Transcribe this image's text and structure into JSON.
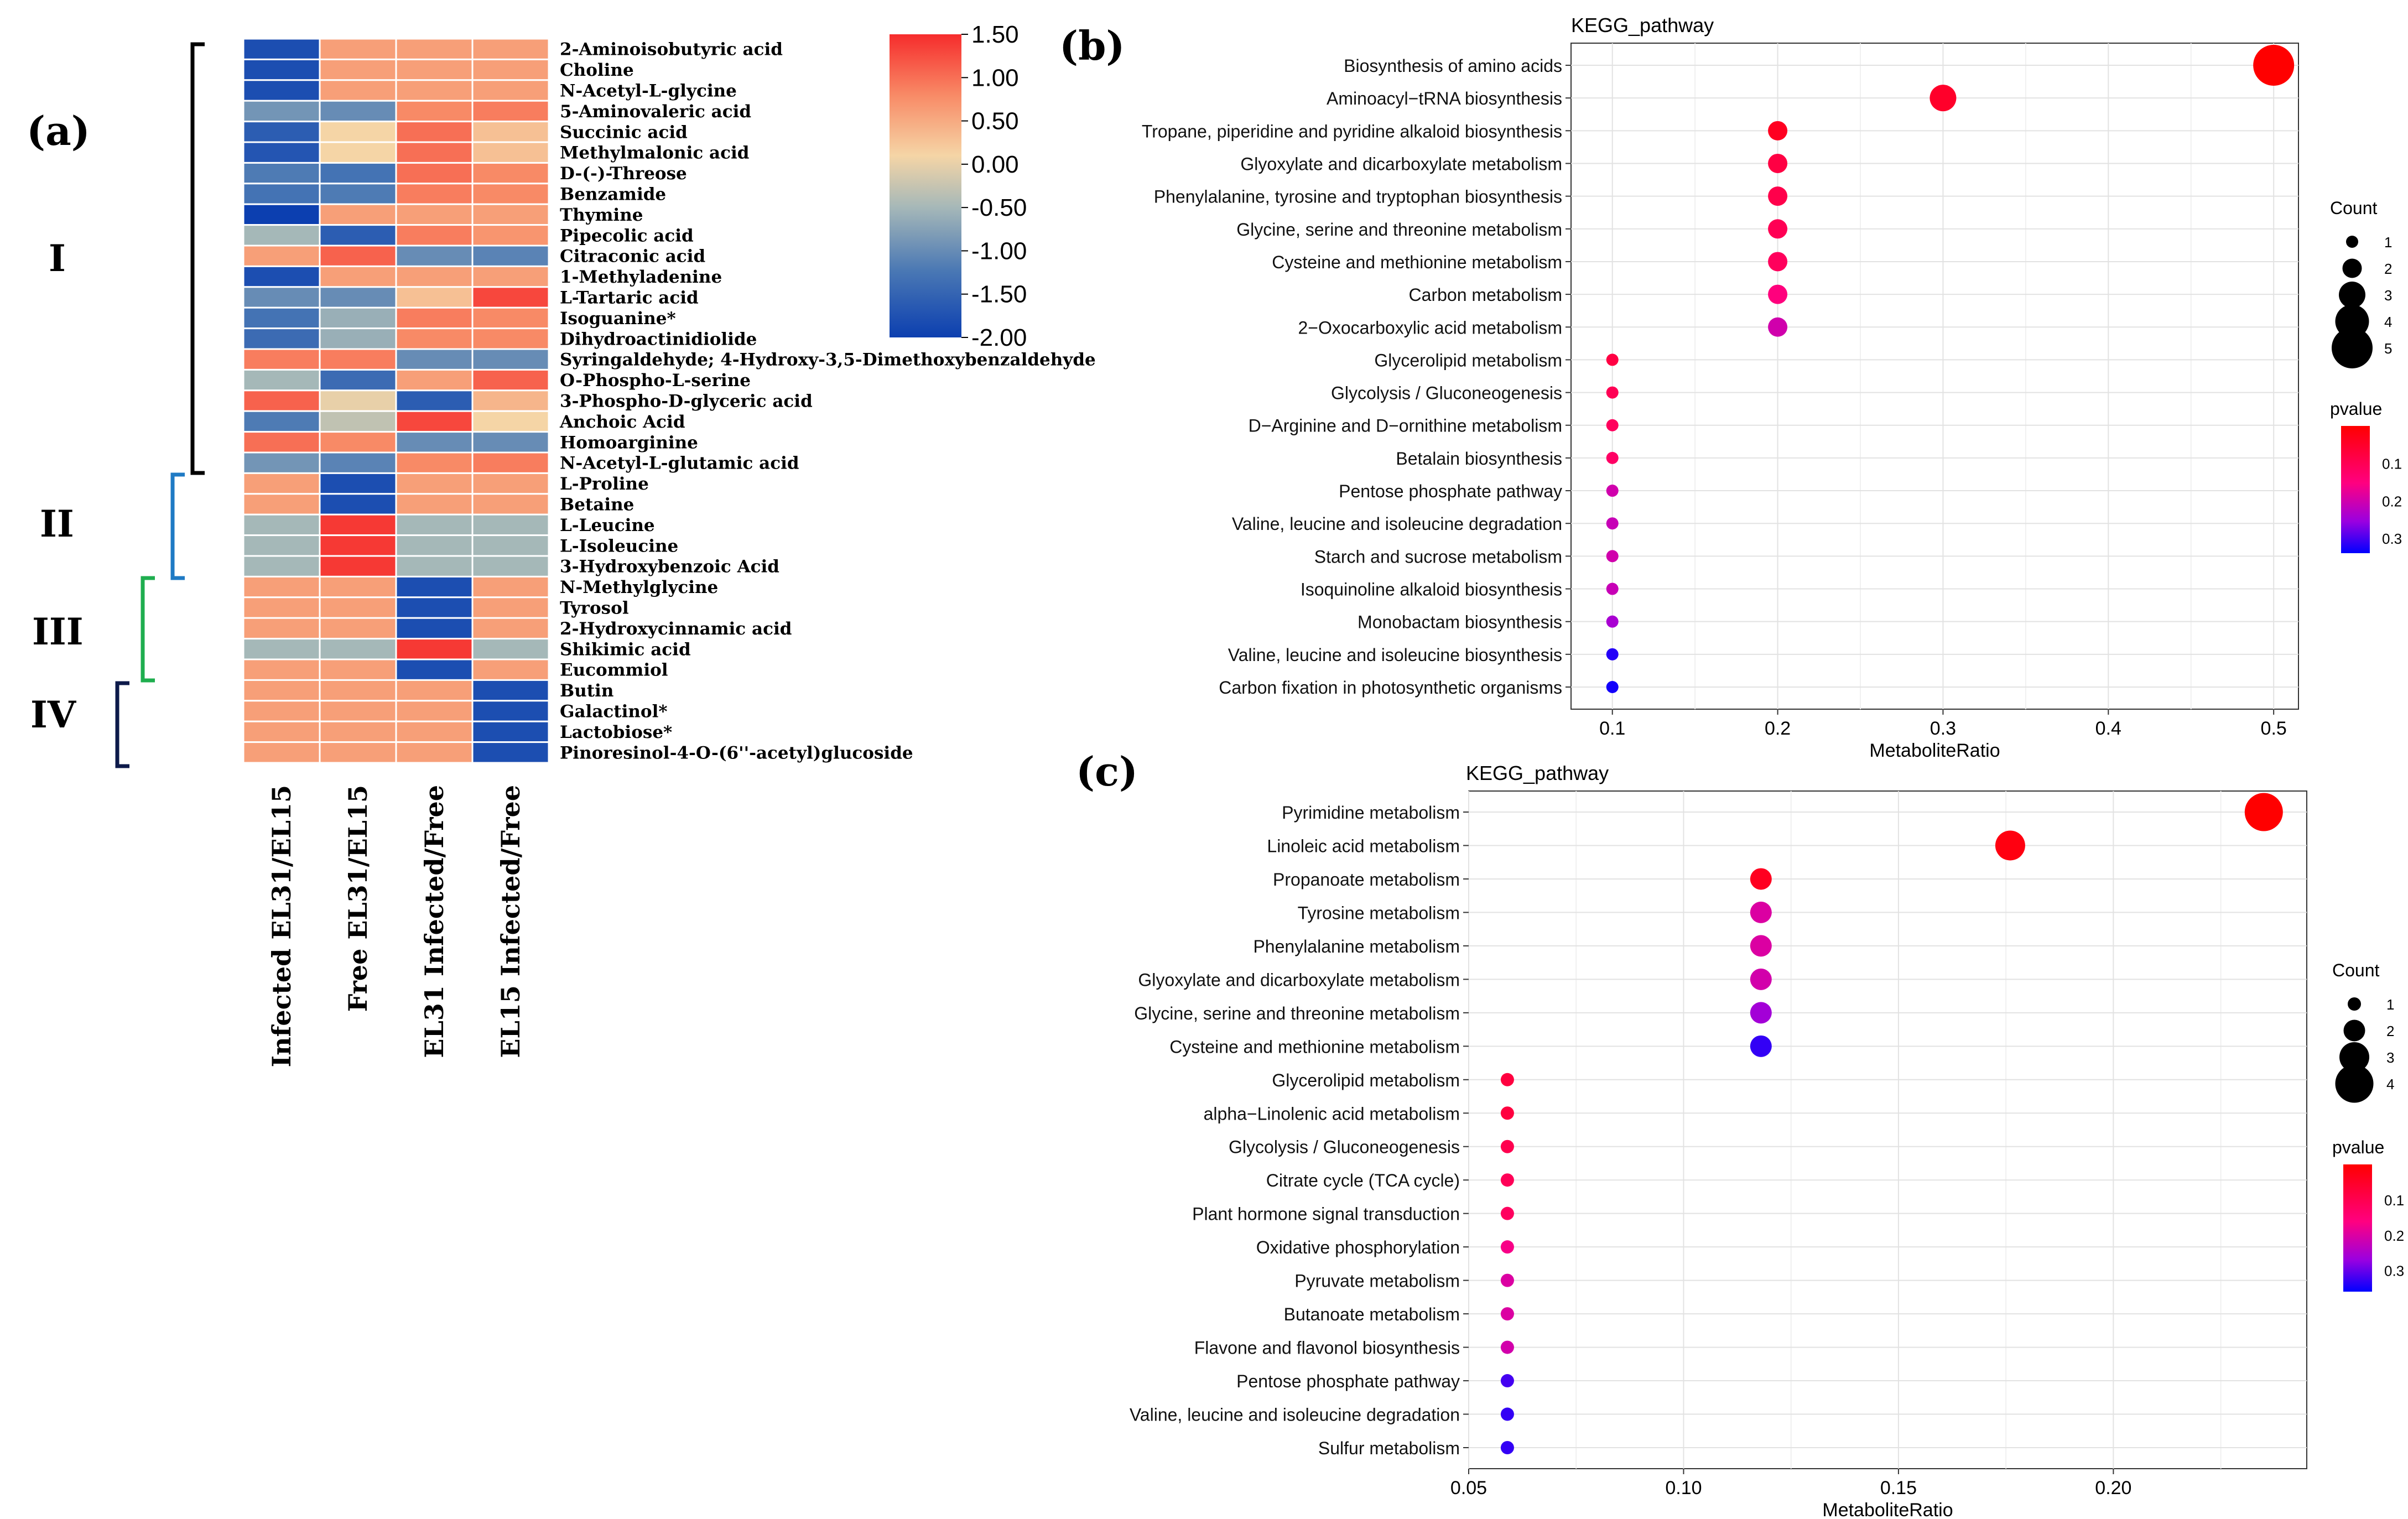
{
  "chart_data": [
    {
      "id": "a",
      "type": "heatmap",
      "panel_label": "(a)",
      "columns": [
        "Infected  EL31/EL15",
        "Free EL31/EL15",
        "EL31 Infected/Free",
        "EL15 Infected/Free"
      ],
      "rows": [
        "2-Aminoisobutyric acid",
        "Choline",
        "N-Acetyl-L-glycine",
        "5-Aminovaleric acid",
        "Succinic acid",
        "Methylmalonic acid",
        "D-(-)-Threose",
        "Benzamide",
        "Thymine",
        "Pipecolic acid",
        "Citraconic acid",
        "1-Methyladenine",
        "L-Tartaric acid",
        "Isoguanine*",
        "Dihydroactinidiolide",
        "Syringaldehyde; 4-Hydroxy-3,5-Dimethoxybenzaldehyde",
        "O-Phospho-L-serine",
        "3-Phospho-D-glyceric acid",
        "Anchoic Acid",
        "Homoarginine",
        "N-Acetyl-L-glutamic acid",
        "L-Proline",
        "Betaine",
        "L-Leucine",
        "L-Isoleucine",
        "3-Hydroxybenzoic Acid",
        "N-Methylglycine",
        "Tyrosol",
        "2-Hydroxycinnamic acid",
        "Shikimic acid",
        "Eucommiol",
        "Butin",
        "Galactinol*",
        "Lactobiose*",
        "Pinoresinol-4-O-(6''-acetyl)glucoside"
      ],
      "values": [
        [
          -1.8,
          0.6,
          0.6,
          0.6
        ],
        [
          -1.8,
          0.6,
          0.6,
          0.6
        ],
        [
          -1.8,
          0.6,
          0.6,
          0.6
        ],
        [
          -0.9,
          -1.0,
          0.8,
          0.9
        ],
        [
          -1.6,
          0.1,
          1.0,
          0.3
        ],
        [
          -1.7,
          0.1,
          1.0,
          0.3
        ],
        [
          -1.2,
          -1.3,
          1.0,
          0.8
        ],
        [
          -1.3,
          -1.2,
          0.9,
          0.8
        ],
        [
          -2.0,
          0.6,
          0.6,
          0.6
        ],
        [
          -0.5,
          -1.6,
          0.9,
          0.7
        ],
        [
          0.6,
          1.1,
          -1.0,
          -1.1
        ],
        [
          -1.8,
          0.6,
          0.6,
          0.6
        ],
        [
          -1.0,
          -1.0,
          0.3,
          1.3
        ],
        [
          -1.3,
          -0.6,
          0.9,
          0.8
        ],
        [
          -1.4,
          -0.6,
          0.8,
          0.8
        ],
        [
          0.9,
          0.9,
          -1.0,
          -1.0
        ],
        [
          -0.5,
          -1.4,
          0.6,
          1.1
        ],
        [
          1.1,
          0.0,
          -1.6,
          0.4
        ],
        [
          -1.2,
          -0.3,
          1.3,
          0.1
        ],
        [
          1.0,
          0.8,
          -1.0,
          -1.0
        ],
        [
          -0.9,
          -1.1,
          0.8,
          0.9
        ],
        [
          0.6,
          -1.8,
          0.6,
          0.6
        ],
        [
          0.6,
          -1.8,
          0.6,
          0.6
        ],
        [
          -0.5,
          1.4,
          -0.5,
          -0.5
        ],
        [
          -0.5,
          1.4,
          -0.5,
          -0.5
        ],
        [
          -0.5,
          1.4,
          -0.5,
          -0.5
        ],
        [
          0.6,
          0.6,
          -1.8,
          0.6
        ],
        [
          0.6,
          0.6,
          -1.8,
          0.6
        ],
        [
          0.6,
          0.6,
          -1.8,
          0.6
        ],
        [
          -0.5,
          -0.5,
          1.4,
          -0.5
        ],
        [
          0.6,
          0.6,
          -1.8,
          0.6
        ],
        [
          0.6,
          0.6,
          0.6,
          -1.8
        ],
        [
          0.6,
          0.6,
          0.6,
          -1.8
        ],
        [
          0.6,
          0.6,
          0.6,
          -1.8
        ],
        [
          0.6,
          0.6,
          0.6,
          -1.8
        ]
      ],
      "colorbar": {
        "ticks": [
          "1.50",
          "1.00",
          "0.50",
          "0.00",
          "-0.50",
          "-1.00",
          "-1.50",
          "-2.00"
        ],
        "min": -2.0,
        "max": 1.5
      },
      "clusters": [
        {
          "label": "I",
          "rows": [
            0,
            20
          ],
          "color": "#000000"
        },
        {
          "label": "II",
          "rows": [
            21,
            25
          ],
          "color": "#1f7ac4"
        },
        {
          "label": "III",
          "rows": [
            26,
            30
          ],
          "color": "#1fae4f"
        },
        {
          "label": "IV",
          "rows": [
            31,
            34
          ],
          "color": "#0d1a4a"
        }
      ]
    },
    {
      "id": "b",
      "type": "scatter",
      "panel_label": "(b)",
      "title": "KEGG_pathway",
      "xlabel": "MetaboliteRatio",
      "xlim": [
        0.075,
        0.515
      ],
      "xticks": [
        "0.1",
        "0.2",
        "0.3",
        "0.4",
        "0.5"
      ],
      "xtick_values": [
        0.1,
        0.2,
        0.3,
        0.4,
        0.5
      ],
      "points": [
        {
          "pathway": "Biosynthesis of amino acids",
          "ratio": 0.5,
          "count": 5,
          "pvalue": 0.0
        },
        {
          "pathway": "Aminoacyl−tRNA biosynthesis",
          "ratio": 0.3,
          "count": 3,
          "pvalue": 0.05
        },
        {
          "pathway": "Tropane, piperidine and pyridine alkaloid biosynthesis",
          "ratio": 0.2,
          "count": 2,
          "pvalue": 0.04
        },
        {
          "pathway": "Glyoxylate and dicarboxylate metabolism",
          "ratio": 0.2,
          "count": 2,
          "pvalue": 0.08
        },
        {
          "pathway": "Phenylalanine, tyrosine and tryptophan biosynthesis",
          "ratio": 0.2,
          "count": 2,
          "pvalue": 0.09
        },
        {
          "pathway": "Glycine, serine and threonine metabolism",
          "ratio": 0.2,
          "count": 2,
          "pvalue": 0.1
        },
        {
          "pathway": "Cysteine and methionine metabolism",
          "ratio": 0.2,
          "count": 2,
          "pvalue": 0.11
        },
        {
          "pathway": "Carbon metabolism",
          "ratio": 0.2,
          "count": 2,
          "pvalue": 0.15
        },
        {
          "pathway": "2−Oxocarboxylic acid metabolism",
          "ratio": 0.2,
          "count": 2,
          "pvalue": 0.2
        },
        {
          "pathway": "Glycerolipid metabolism",
          "ratio": 0.1,
          "count": 1,
          "pvalue": 0.08
        },
        {
          "pathway": "Glycolysis / Gluconeogenesis",
          "ratio": 0.1,
          "count": 1,
          "pvalue": 0.1
        },
        {
          "pathway": "D−Arginine and D−ornithine metabolism",
          "ratio": 0.1,
          "count": 1,
          "pvalue": 0.11
        },
        {
          "pathway": "Betalain biosynthesis",
          "ratio": 0.1,
          "count": 1,
          "pvalue": 0.12
        },
        {
          "pathway": "Pentose phosphate pathway",
          "ratio": 0.1,
          "count": 1,
          "pvalue": 0.2
        },
        {
          "pathway": "Valine, leucine and isoleucine degradation",
          "ratio": 0.1,
          "count": 1,
          "pvalue": 0.21
        },
        {
          "pathway": "Starch and sucrose metabolism",
          "ratio": 0.1,
          "count": 1,
          "pvalue": 0.2
        },
        {
          "pathway": "Isoquinoline alkaloid biosynthesis",
          "ratio": 0.1,
          "count": 1,
          "pvalue": 0.21
        },
        {
          "pathway": "Monobactam biosynthesis",
          "ratio": 0.1,
          "count": 1,
          "pvalue": 0.24
        },
        {
          "pathway": "Valine, leucine and isoleucine biosynthesis",
          "ratio": 0.1,
          "count": 1,
          "pvalue": 0.32
        },
        {
          "pathway": "Carbon fixation in photosynthetic organisms",
          "ratio": 0.1,
          "count": 1,
          "pvalue": 0.33
        }
      ],
      "size_legend": {
        "title": "Count",
        "values": [
          "1",
          "2",
          "3",
          "4",
          "5"
        ]
      },
      "color_legend": {
        "title": "pvalue",
        "ticks": [
          "0.1",
          "0.2",
          "0.3"
        ],
        "min": 0.0,
        "max": 0.34
      }
    },
    {
      "id": "c",
      "type": "scatter",
      "panel_label": "(c)",
      "title": "KEGG_pathway",
      "xlabel": "MetaboliteRatio",
      "xlim": [
        0.05,
        0.245
      ],
      "xticks": [
        "0.05",
        "0.10",
        "0.15",
        "0.20"
      ],
      "xtick_values": [
        0.05,
        0.1,
        0.15,
        0.2
      ],
      "points": [
        {
          "pathway": "Pyrimidine metabolism",
          "ratio": 0.235,
          "count": 4,
          "pvalue": 0.0
        },
        {
          "pathway": "Linoleic acid metabolism",
          "ratio": 0.176,
          "count": 3,
          "pvalue": 0.02
        },
        {
          "pathway": "Propanoate metabolism",
          "ratio": 0.118,
          "count": 2,
          "pvalue": 0.04
        },
        {
          "pathway": "Tyrosine metabolism",
          "ratio": 0.118,
          "count": 2,
          "pvalue": 0.2
        },
        {
          "pathway": "Phenylalanine metabolism",
          "ratio": 0.118,
          "count": 2,
          "pvalue": 0.2
        },
        {
          "pathway": "Glyoxylate and dicarboxylate metabolism",
          "ratio": 0.118,
          "count": 2,
          "pvalue": 0.21
        },
        {
          "pathway": "Glycine, serine and threonine metabolism",
          "ratio": 0.118,
          "count": 2,
          "pvalue": 0.26
        },
        {
          "pathway": "Cysteine and methionine metabolism",
          "ratio": 0.118,
          "count": 2,
          "pvalue": 0.33
        },
        {
          "pathway": "Glycerolipid metabolism",
          "ratio": 0.059,
          "count": 1,
          "pvalue": 0.08
        },
        {
          "pathway": "alpha−Linolenic acid metabolism",
          "ratio": 0.059,
          "count": 1,
          "pvalue": 0.08
        },
        {
          "pathway": "Glycolysis / Gluconeogenesis",
          "ratio": 0.059,
          "count": 1,
          "pvalue": 0.1
        },
        {
          "pathway": "Citrate cycle (TCA cycle)",
          "ratio": 0.059,
          "count": 1,
          "pvalue": 0.11
        },
        {
          "pathway": "Plant hormone signal transduction",
          "ratio": 0.059,
          "count": 1,
          "pvalue": 0.12
        },
        {
          "pathway": "Oxidative phosphorylation",
          "ratio": 0.059,
          "count": 1,
          "pvalue": 0.17
        },
        {
          "pathway": "Pyruvate metabolism",
          "ratio": 0.059,
          "count": 1,
          "pvalue": 0.2
        },
        {
          "pathway": "Butanoate metabolism",
          "ratio": 0.059,
          "count": 1,
          "pvalue": 0.2
        },
        {
          "pathway": "Flavone and flavonol biosynthesis",
          "ratio": 0.059,
          "count": 1,
          "pvalue": 0.21
        },
        {
          "pathway": "Pentose phosphate pathway",
          "ratio": 0.059,
          "count": 1,
          "pvalue": 0.32
        },
        {
          "pathway": "Valine, leucine and isoleucine degradation",
          "ratio": 0.059,
          "count": 1,
          "pvalue": 0.33
        },
        {
          "pathway": "Sulfur metabolism",
          "ratio": 0.059,
          "count": 1,
          "pvalue": 0.33
        }
      ],
      "size_legend": {
        "title": "Count",
        "values": [
          "1",
          "2",
          "3",
          "4"
        ]
      },
      "color_legend": {
        "title": "pvalue",
        "ticks": [
          "0.1",
          "0.2",
          "0.3"
        ],
        "min": 0.0,
        "max": 0.36
      }
    }
  ]
}
